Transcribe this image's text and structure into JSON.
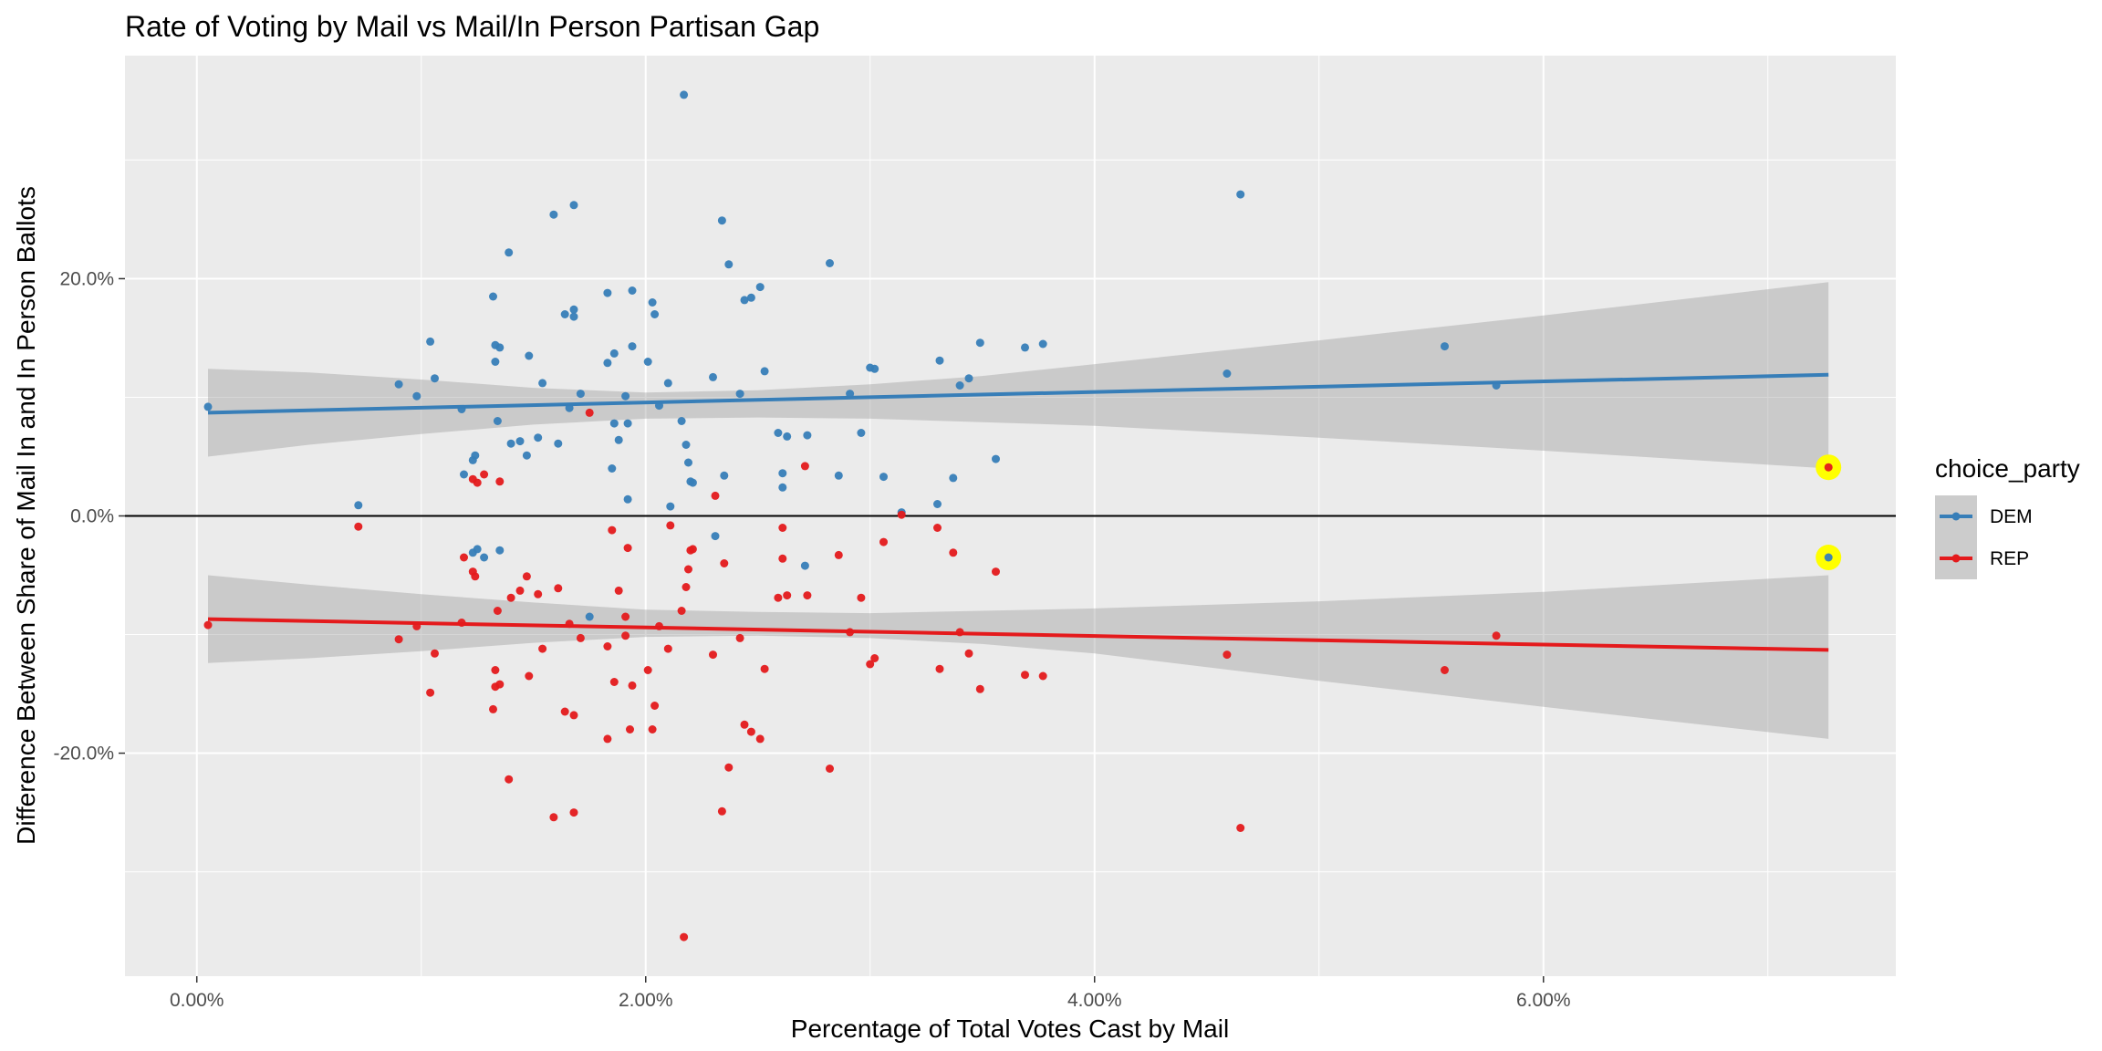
{
  "chart_data": {
    "type": "scatter",
    "title": "Rate of Voting by Mail vs Mail/In Person Partisan Gap",
    "xlabel": "Percentage of Total Votes Cast by Mail",
    "ylabel": "Difference Between Share of Mail In and In Person Ballots",
    "xlim": [
      -0.0032,
      0.0757
    ],
    "ylim": [
      -0.388,
      0.388
    ],
    "x_ticks": [
      0.0,
      0.02,
      0.04,
      0.06
    ],
    "x_tick_labels": [
      "0.00%",
      "2.00%",
      "4.00%",
      "6.00%"
    ],
    "y_ticks": [
      -0.2,
      0.0,
      0.2
    ],
    "y_tick_labels": [
      "-20.0%",
      "0.0%",
      "20.0%"
    ],
    "reference_line_y": 0.0,
    "grid": true,
    "legend": {
      "title": "choice_party",
      "position": "right",
      "entries": [
        {
          "label": "DEM",
          "color": "#377eb8"
        },
        {
          "label": "REP",
          "color": "#e41a1c"
        }
      ]
    },
    "highlight_color": "#ffff00",
    "highlights": [
      {
        "x": 0.0727,
        "y": 0.041
      },
      {
        "x": 0.0727,
        "y": -0.035
      }
    ],
    "series": [
      {
        "name": "DEM",
        "color": "#377eb8",
        "fit_line": {
          "x": [
            0.0005,
            0.0727
          ],
          "y": [
            0.087,
            0.119
          ]
        },
        "confidence_band": {
          "x": [
            0.0005,
            0.005,
            0.01,
            0.015,
            0.02,
            0.025,
            0.03,
            0.035,
            0.04,
            0.05,
            0.06,
            0.0727
          ],
          "upper": [
            0.124,
            0.121,
            0.115,
            0.108,
            0.104,
            0.106,
            0.111,
            0.118,
            0.128,
            0.148,
            0.169,
            0.197
          ],
          "lower": [
            0.05,
            0.06,
            0.069,
            0.077,
            0.082,
            0.083,
            0.082,
            0.079,
            0.076,
            0.066,
            0.055,
            0.04
          ]
        },
        "points": [
          [
            0.0005,
            0.092
          ],
          [
            0.0072,
            0.009
          ],
          [
            0.009,
            0.111
          ],
          [
            0.0098,
            0.101
          ],
          [
            0.0104,
            0.147
          ],
          [
            0.0106,
            0.116
          ],
          [
            0.0118,
            0.09
          ],
          [
            0.0119,
            0.035
          ],
          [
            0.0123,
            0.047
          ],
          [
            0.0124,
            0.051
          ],
          [
            0.0123,
            -0.031
          ],
          [
            0.0125,
            -0.028
          ],
          [
            0.0128,
            -0.035
          ],
          [
            0.0132,
            0.185
          ],
          [
            0.0133,
            0.13
          ],
          [
            0.0133,
            0.144
          ],
          [
            0.0134,
            0.08
          ],
          [
            0.0135,
            0.142
          ],
          [
            0.0135,
            -0.029
          ],
          [
            0.0139,
            0.222
          ],
          [
            0.014,
            0.061
          ],
          [
            0.0144,
            0.063
          ],
          [
            0.0147,
            0.051
          ],
          [
            0.0148,
            0.135
          ],
          [
            0.0152,
            0.066
          ],
          [
            0.0154,
            0.112
          ],
          [
            0.0159,
            0.254
          ],
          [
            0.0161,
            0.061
          ],
          [
            0.0164,
            0.17
          ],
          [
            0.0166,
            0.091
          ],
          [
            0.0168,
            0.262
          ],
          [
            0.0168,
            0.174
          ],
          [
            0.0168,
            0.168
          ],
          [
            0.0171,
            0.103
          ],
          [
            0.0175,
            -0.085
          ],
          [
            0.0183,
            0.188
          ],
          [
            0.0183,
            0.129
          ],
          [
            0.0185,
            0.04
          ],
          [
            0.0186,
            0.078
          ],
          [
            0.0186,
            0.137
          ],
          [
            0.0188,
            0.064
          ],
          [
            0.0191,
            0.101
          ],
          [
            0.0192,
            0.078
          ],
          [
            0.0192,
            0.014
          ],
          [
            0.0194,
            0.19
          ],
          [
            0.0194,
            0.143
          ],
          [
            0.0201,
            0.13
          ],
          [
            0.0203,
            0.18
          ],
          [
            0.0204,
            0.17
          ],
          [
            0.0206,
            0.093
          ],
          [
            0.021,
            0.112
          ],
          [
            0.0211,
            0.008
          ],
          [
            0.0216,
            0.08
          ],
          [
            0.0218,
            0.06
          ],
          [
            0.0217,
            0.355
          ],
          [
            0.0219,
            0.045
          ],
          [
            0.022,
            0.029
          ],
          [
            0.0221,
            0.028
          ],
          [
            0.023,
            0.117
          ],
          [
            0.0231,
            -0.017
          ],
          [
            0.0234,
            0.249
          ],
          [
            0.0235,
            0.034
          ],
          [
            0.0237,
            0.212
          ],
          [
            0.0242,
            0.103
          ],
          [
            0.0244,
            0.182
          ],
          [
            0.0247,
            0.184
          ],
          [
            0.0251,
            0.193
          ],
          [
            0.0253,
            0.122
          ],
          [
            0.0259,
            0.07
          ],
          [
            0.0261,
            0.036
          ],
          [
            0.0261,
            0.024
          ],
          [
            0.0263,
            0.067
          ],
          [
            0.0271,
            -0.042
          ],
          [
            0.0272,
            0.068
          ],
          [
            0.0282,
            0.213
          ],
          [
            0.0286,
            0.034
          ],
          [
            0.0291,
            0.103
          ],
          [
            0.0296,
            0.07
          ],
          [
            0.03,
            0.125
          ],
          [
            0.0302,
            0.124
          ],
          [
            0.0306,
            0.033
          ],
          [
            0.0314,
            0.003
          ],
          [
            0.033,
            0.01
          ],
          [
            0.0331,
            0.131
          ],
          [
            0.0337,
            0.032
          ],
          [
            0.034,
            0.11
          ],
          [
            0.0344,
            0.116
          ],
          [
            0.0349,
            0.146
          ],
          [
            0.0356,
            0.048
          ],
          [
            0.0369,
            0.142
          ],
          [
            0.0377,
            0.145
          ],
          [
            0.0459,
            0.12
          ],
          [
            0.0465,
            0.271
          ],
          [
            0.0556,
            0.143
          ],
          [
            0.0579,
            0.11
          ],
          [
            0.0727,
            -0.035
          ]
        ]
      },
      {
        "name": "REP",
        "color": "#e41a1c",
        "fit_line": {
          "x": [
            0.0005,
            0.0727
          ],
          "y": [
            -0.087,
            -0.113
          ]
        },
        "confidence_band": {
          "x": [
            0.0005,
            0.005,
            0.01,
            0.015,
            0.02,
            0.025,
            0.03,
            0.035,
            0.04,
            0.05,
            0.06,
            0.0727
          ],
          "upper": [
            -0.05,
            -0.058,
            -0.066,
            -0.073,
            -0.079,
            -0.081,
            -0.082,
            -0.08,
            -0.078,
            -0.072,
            -0.064,
            -0.05
          ],
          "lower": [
            -0.124,
            -0.12,
            -0.114,
            -0.107,
            -0.102,
            -0.101,
            -0.103,
            -0.108,
            -0.116,
            -0.139,
            -0.161,
            -0.188
          ]
        },
        "points": [
          [
            0.0005,
            -0.092
          ],
          [
            0.0072,
            -0.009
          ],
          [
            0.009,
            -0.104
          ],
          [
            0.0098,
            -0.093
          ],
          [
            0.0104,
            -0.149
          ],
          [
            0.0106,
            -0.116
          ],
          [
            0.0118,
            -0.09
          ],
          [
            0.0119,
            -0.035
          ],
          [
            0.0123,
            -0.047
          ],
          [
            0.0124,
            -0.051
          ],
          [
            0.0123,
            0.031
          ],
          [
            0.0125,
            0.028
          ],
          [
            0.0128,
            0.035
          ],
          [
            0.0132,
            -0.163
          ],
          [
            0.0133,
            -0.13
          ],
          [
            0.0133,
            -0.144
          ],
          [
            0.0134,
            -0.08
          ],
          [
            0.0135,
            -0.142
          ],
          [
            0.0135,
            0.029
          ],
          [
            0.0139,
            -0.222
          ],
          [
            0.014,
            -0.069
          ],
          [
            0.0144,
            -0.063
          ],
          [
            0.0147,
            -0.051
          ],
          [
            0.0148,
            -0.135
          ],
          [
            0.0152,
            -0.066
          ],
          [
            0.0154,
            -0.112
          ],
          [
            0.0159,
            -0.254
          ],
          [
            0.0161,
            -0.061
          ],
          [
            0.0164,
            -0.165
          ],
          [
            0.0166,
            -0.091
          ],
          [
            0.0168,
            -0.25
          ],
          [
            0.0168,
            -0.168
          ],
          [
            0.0171,
            -0.103
          ],
          [
            0.0175,
            0.087
          ],
          [
            0.0183,
            -0.188
          ],
          [
            0.0183,
            -0.11
          ],
          [
            0.0185,
            -0.012
          ],
          [
            0.0186,
            -0.14
          ],
          [
            0.0188,
            -0.063
          ],
          [
            0.0191,
            -0.101
          ],
          [
            0.0191,
            -0.085
          ],
          [
            0.0192,
            -0.027
          ],
          [
            0.0193,
            -0.18
          ],
          [
            0.0194,
            -0.143
          ],
          [
            0.0201,
            -0.13
          ],
          [
            0.0203,
            -0.18
          ],
          [
            0.0204,
            -0.16
          ],
          [
            0.0206,
            -0.093
          ],
          [
            0.021,
            -0.112
          ],
          [
            0.0211,
            -0.008
          ],
          [
            0.0216,
            -0.08
          ],
          [
            0.0218,
            -0.06
          ],
          [
            0.0217,
            -0.355
          ],
          [
            0.0219,
            -0.045
          ],
          [
            0.022,
            -0.029
          ],
          [
            0.0221,
            -0.028
          ],
          [
            0.023,
            -0.117
          ],
          [
            0.0231,
            0.017
          ],
          [
            0.0234,
            -0.249
          ],
          [
            0.0235,
            -0.04
          ],
          [
            0.0237,
            -0.212
          ],
          [
            0.0242,
            -0.103
          ],
          [
            0.0244,
            -0.176
          ],
          [
            0.0247,
            -0.182
          ],
          [
            0.0251,
            -0.188
          ],
          [
            0.0253,
            -0.129
          ],
          [
            0.0259,
            -0.069
          ],
          [
            0.0261,
            -0.036
          ],
          [
            0.0261,
            -0.01
          ],
          [
            0.0263,
            -0.067
          ],
          [
            0.0271,
            0.042
          ],
          [
            0.0272,
            -0.067
          ],
          [
            0.0282,
            -0.213
          ],
          [
            0.0286,
            -0.033
          ],
          [
            0.0291,
            -0.098
          ],
          [
            0.0296,
            -0.069
          ],
          [
            0.03,
            -0.125
          ],
          [
            0.0302,
            -0.12
          ],
          [
            0.0306,
            -0.022
          ],
          [
            0.0314,
            0.001
          ],
          [
            0.033,
            -0.01
          ],
          [
            0.0331,
            -0.129
          ],
          [
            0.0337,
            -0.031
          ],
          [
            0.034,
            -0.098
          ],
          [
            0.0344,
            -0.116
          ],
          [
            0.0349,
            -0.146
          ],
          [
            0.0356,
            -0.047
          ],
          [
            0.0369,
            -0.134
          ],
          [
            0.0377,
            -0.135
          ],
          [
            0.0459,
            -0.117
          ],
          [
            0.0465,
            -0.263
          ],
          [
            0.0556,
            -0.13
          ],
          [
            0.0579,
            -0.101
          ],
          [
            0.0727,
            0.041
          ]
        ]
      }
    ]
  }
}
